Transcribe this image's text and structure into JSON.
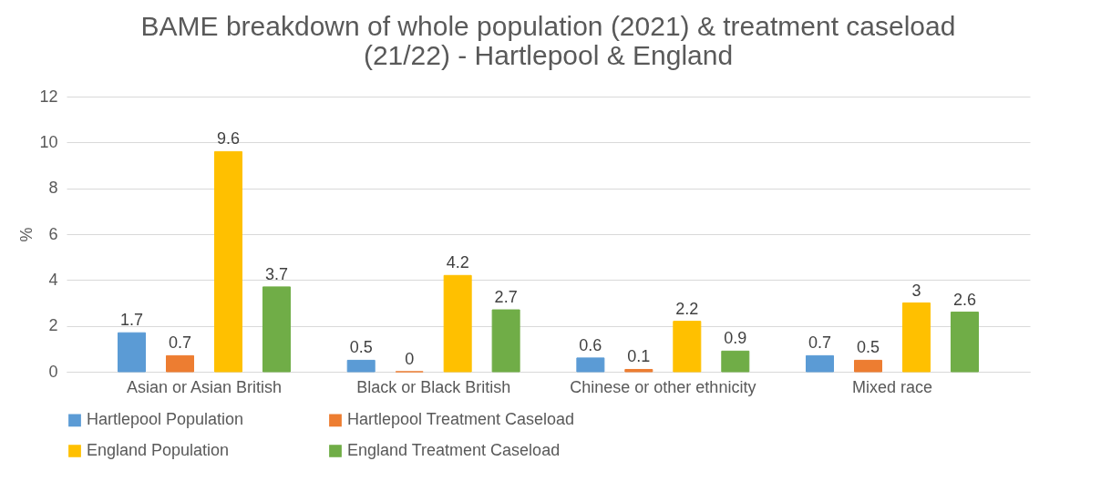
{
  "chart_data": {
    "type": "bar",
    "title": "BAME breakdown of whole population (2021) & treatment caseload (21/22) - Hartlepool & England",
    "categories": [
      "Asian or Asian British",
      "Black or Black British",
      "Chinese or other ethnicity",
      "Mixed race"
    ],
    "series": [
      {
        "name": "Hartlepool Population",
        "color": "#5b9bd5",
        "values": [
          1.7,
          0.5,
          0.6,
          0.7
        ]
      },
      {
        "name": "Hartlepool Treatment Caseload",
        "color": "#ed7d31",
        "values": [
          0.7,
          0,
          0.1,
          0.5
        ]
      },
      {
        "name": "England Population",
        "color": "#ffc000",
        "values": [
          9.6,
          4.2,
          2.2,
          3
        ]
      },
      {
        "name": "England Treatment Caseload",
        "color": "#70ad47",
        "values": [
          3.7,
          2.7,
          0.9,
          2.6
        ]
      }
    ],
    "ylabel": "%",
    "ylim": [
      0,
      12
    ],
    "yticks": [
      0,
      2,
      4,
      6,
      8,
      10,
      12
    ],
    "grid": "y",
    "legend": "bottom",
    "data_labels": true
  }
}
